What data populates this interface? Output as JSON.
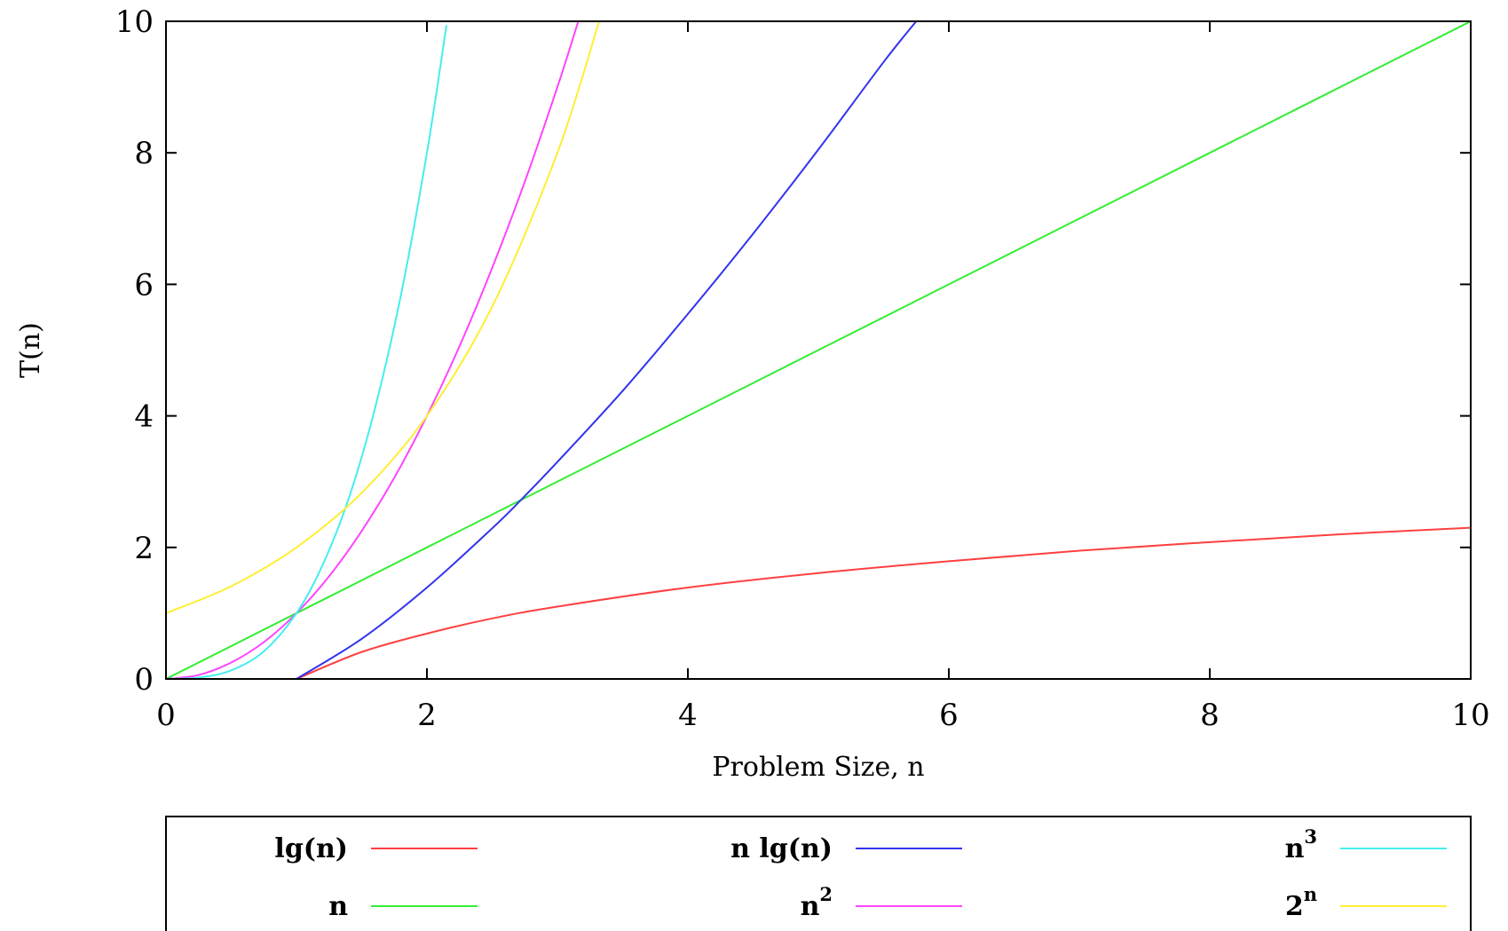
{
  "chart_data": {
    "type": "line",
    "xlabel": "Problem Size, n",
    "ylabel": "T(n)",
    "xlim": [
      0,
      10
    ],
    "ylim": [
      0,
      10
    ],
    "x_ticks": [
      0,
      2,
      4,
      6,
      8,
      10
    ],
    "y_ticks": [
      0,
      2,
      4,
      6,
      8,
      10
    ],
    "x_tick_labels": [
      "0",
      "2",
      "4",
      "6",
      "8",
      "10"
    ],
    "y_tick_labels": [
      "0",
      "2",
      "4",
      "6",
      "8",
      "10"
    ],
    "grid": false,
    "legend_position": "bottom",
    "series": [
      {
        "name": "lg(n)",
        "base": "lg(n)",
        "sup": "",
        "color": "#ff4040",
        "x": [
          1,
          1.5,
          2,
          2.5,
          3,
          4,
          5,
          6,
          7,
          8,
          9,
          10
        ],
        "y": [
          0,
          0.41,
          0.69,
          0.92,
          1.1,
          1.39,
          1.61,
          1.79,
          1.95,
          2.08,
          2.2,
          2.3
        ]
      },
      {
        "name": "n",
        "base": "n",
        "sup": "",
        "color": "#33ee33",
        "x": [
          0,
          2,
          4,
          6,
          8,
          10
        ],
        "y": [
          0,
          2,
          4,
          6,
          8,
          10
        ]
      },
      {
        "name": "n lg(n)",
        "base": "n lg(n)",
        "sup": "",
        "color": "#3333ee",
        "x": [
          1,
          1.5,
          2,
          2.5,
          2.72,
          3,
          3.5,
          4,
          4.5,
          5,
          5.5,
          5.75
        ],
        "y": [
          0,
          0.61,
          1.39,
          2.29,
          2.72,
          3.3,
          4.38,
          5.55,
          6.77,
          8.05,
          9.38,
          10
        ]
      },
      {
        "name": "n^2",
        "base": "n",
        "sup": "2",
        "color": "#ff44ff",
        "x": [
          0,
          0.25,
          0.5,
          0.75,
          1,
          1.25,
          1.5,
          1.75,
          2,
          2.25,
          2.5,
          2.75,
          3,
          3.16
        ],
        "y": [
          0,
          0.06,
          0.25,
          0.56,
          1,
          1.56,
          2.25,
          3.06,
          4,
          5.06,
          6.25,
          7.56,
          9,
          10
        ]
      },
      {
        "name": "n^3",
        "base": "n",
        "sup": "3",
        "color": "#44eeee",
        "x": [
          0,
          0.25,
          0.5,
          0.75,
          1,
          1.2,
          1.4,
          1.6,
          1.8,
          2,
          2.15
        ],
        "y": [
          0,
          0.02,
          0.13,
          0.42,
          1,
          1.73,
          2.74,
          4.1,
          5.83,
          8,
          9.94
        ]
      },
      {
        "name": "2^n",
        "base": "2",
        "sup": "n",
        "color": "#ffee33",
        "x": [
          0,
          0.5,
          1,
          1.5,
          2,
          2.5,
          3,
          3.32
        ],
        "y": [
          1,
          1.41,
          2,
          2.83,
          4,
          5.66,
          8,
          10
        ]
      }
    ]
  },
  "legend_order": [
    [
      "lg(n)",
      "n lg(n)",
      "n^3"
    ],
    [
      "n",
      "n^2",
      "2^n"
    ]
  ]
}
